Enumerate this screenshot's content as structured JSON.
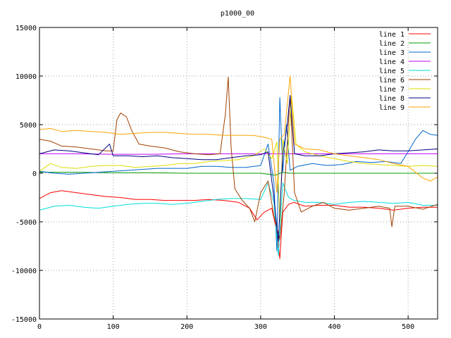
{
  "chart_data": {
    "type": "line",
    "title": "p1000_00",
    "xlabel": "",
    "ylabel": "",
    "xlim": [
      0,
      540
    ],
    "ylim": [
      -15000,
      15000
    ],
    "x_ticks": [
      0,
      100,
      200,
      300,
      400,
      500
    ],
    "y_ticks": [
      -15000,
      -10000,
      -5000,
      0,
      5000,
      10000,
      15000
    ],
    "grid": true,
    "legend_position": "top-right",
    "series": [
      {
        "name": "line 1",
        "color": "#ff0000",
        "points": [
          [
            0,
            -2600
          ],
          [
            15,
            -2000
          ],
          [
            30,
            -1800
          ],
          [
            50,
            -2000
          ],
          [
            70,
            -2200
          ],
          [
            90,
            -2400
          ],
          [
            110,
            -2500
          ],
          [
            130,
            -2700
          ],
          [
            150,
            -2700
          ],
          [
            170,
            -2800
          ],
          [
            190,
            -2800
          ],
          [
            210,
            -2800
          ],
          [
            230,
            -2700
          ],
          [
            250,
            -2800
          ],
          [
            270,
            -3000
          ],
          [
            285,
            -3600
          ],
          [
            295,
            -4800
          ],
          [
            305,
            -4000
          ],
          [
            315,
            -3600
          ],
          [
            322,
            -6000
          ],
          [
            326,
            -8800
          ],
          [
            330,
            -4000
          ],
          [
            338,
            -3200
          ],
          [
            345,
            -3000
          ],
          [
            360,
            -3400
          ],
          [
            380,
            -3300
          ],
          [
            400,
            -3300
          ],
          [
            420,
            -3500
          ],
          [
            440,
            -3500
          ],
          [
            460,
            -3600
          ],
          [
            480,
            -3800
          ],
          [
            500,
            -3600
          ],
          [
            520,
            -3500
          ],
          [
            540,
            -3500
          ]
        ]
      },
      {
        "name": "line 2",
        "color": "#00a000",
        "points": [
          [
            0,
            100
          ],
          [
            50,
            100
          ],
          [
            100,
            50
          ],
          [
            150,
            50
          ],
          [
            200,
            0
          ],
          [
            250,
            0
          ],
          [
            300,
            0
          ],
          [
            320,
            -200
          ],
          [
            330,
            100
          ],
          [
            340,
            0
          ],
          [
            360,
            0
          ],
          [
            400,
            0
          ],
          [
            450,
            0
          ],
          [
            500,
            0
          ],
          [
            540,
            0
          ]
        ]
      },
      {
        "name": "line 3",
        "color": "#0066cc",
        "points": [
          [
            0,
            200
          ],
          [
            20,
            0
          ],
          [
            40,
            -100
          ],
          [
            60,
            0
          ],
          [
            80,
            100
          ],
          [
            100,
            200
          ],
          [
            120,
            300
          ],
          [
            140,
            400
          ],
          [
            160,
            500
          ],
          [
            180,
            500
          ],
          [
            200,
            500
          ],
          [
            220,
            700
          ],
          [
            240,
            700
          ],
          [
            260,
            600
          ],
          [
            280,
            600
          ],
          [
            300,
            800
          ],
          [
            310,
            3000
          ],
          [
            318,
            -1000
          ],
          [
            322,
            -8000
          ],
          [
            326,
            7800
          ],
          [
            330,
            200
          ],
          [
            335,
            5000
          ],
          [
            340,
            300
          ],
          [
            350,
            700
          ],
          [
            370,
            1000
          ],
          [
            390,
            800
          ],
          [
            410,
            900
          ],
          [
            430,
            1200
          ],
          [
            450,
            1100
          ],
          [
            470,
            1200
          ],
          [
            490,
            1000
          ],
          [
            500,
            2200
          ],
          [
            510,
            3500
          ],
          [
            520,
            4400
          ],
          [
            530,
            4000
          ],
          [
            540,
            3900
          ]
        ]
      },
      {
        "name": "line 4",
        "color": "#c000ff",
        "points": [
          [
            0,
            2000
          ],
          [
            50,
            2000
          ],
          [
            100,
            1950
          ],
          [
            150,
            1950
          ],
          [
            200,
            2000
          ],
          [
            250,
            2000
          ],
          [
            300,
            2000
          ],
          [
            330,
            2000
          ],
          [
            350,
            2000
          ],
          [
            400,
            2000
          ],
          [
            450,
            2000
          ],
          [
            500,
            2000
          ],
          [
            540,
            2000
          ]
        ]
      },
      {
        "name": "line 5",
        "color": "#00dddd",
        "points": [
          [
            0,
            -3800
          ],
          [
            20,
            -3400
          ],
          [
            40,
            -3300
          ],
          [
            60,
            -3500
          ],
          [
            80,
            -3600
          ],
          [
            100,
            -3400
          ],
          [
            120,
            -3200
          ],
          [
            140,
            -3100
          ],
          [
            160,
            -3100
          ],
          [
            180,
            -3200
          ],
          [
            200,
            -3100
          ],
          [
            220,
            -2900
          ],
          [
            240,
            -2700
          ],
          [
            260,
            -2600
          ],
          [
            280,
            -2600
          ],
          [
            300,
            -2700
          ],
          [
            310,
            -1000
          ],
          [
            318,
            -3000
          ],
          [
            324,
            -8500
          ],
          [
            330,
            -1000
          ],
          [
            338,
            -2500
          ],
          [
            345,
            -2800
          ],
          [
            360,
            -3000
          ],
          [
            380,
            -3000
          ],
          [
            400,
            -3200
          ],
          [
            420,
            -3000
          ],
          [
            440,
            -2900
          ],
          [
            460,
            -3000
          ],
          [
            480,
            -3100
          ],
          [
            500,
            -3000
          ],
          [
            520,
            -3300
          ],
          [
            540,
            -3300
          ]
        ]
      },
      {
        "name": "line 6",
        "color": "#a04000",
        "points": [
          [
            0,
            3500
          ],
          [
            15,
            3300
          ],
          [
            30,
            2800
          ],
          [
            50,
            2700
          ],
          [
            70,
            2500
          ],
          [
            90,
            2300
          ],
          [
            100,
            2300
          ],
          [
            105,
            5500
          ],
          [
            110,
            6200
          ],
          [
            118,
            5800
          ],
          [
            125,
            4400
          ],
          [
            135,
            3000
          ],
          [
            150,
            2800
          ],
          [
            170,
            2600
          ],
          [
            190,
            2200
          ],
          [
            210,
            2000
          ],
          [
            230,
            1900
          ],
          [
            245,
            2000
          ],
          [
            252,
            6000
          ],
          [
            256,
            9900
          ],
          [
            260,
            2600
          ],
          [
            265,
            -1600
          ],
          [
            275,
            -2800
          ],
          [
            285,
            -3600
          ],
          [
            292,
            -5000
          ],
          [
            300,
            -2000
          ],
          [
            310,
            -800
          ],
          [
            318,
            -4400
          ],
          [
            326,
            -6800
          ],
          [
            332,
            -2000
          ],
          [
            340,
            8000
          ],
          [
            346,
            -2000
          ],
          [
            355,
            -4000
          ],
          [
            370,
            -3400
          ],
          [
            385,
            -3000
          ],
          [
            400,
            -3600
          ],
          [
            420,
            -3800
          ],
          [
            440,
            -3600
          ],
          [
            460,
            -3400
          ],
          [
            475,
            -3600
          ],
          [
            478,
            -5500
          ],
          [
            482,
            -3400
          ],
          [
            500,
            -3400
          ],
          [
            520,
            -3700
          ],
          [
            540,
            -3200
          ]
        ]
      },
      {
        "name": "line 7",
        "color": "#dddd00",
        "points": [
          [
            0,
            200
          ],
          [
            15,
            1000
          ],
          [
            30,
            600
          ],
          [
            50,
            500
          ],
          [
            70,
            700
          ],
          [
            90,
            800
          ],
          [
            110,
            800
          ],
          [
            130,
            600
          ],
          [
            150,
            700
          ],
          [
            170,
            800
          ],
          [
            190,
            1000
          ],
          [
            210,
            1000
          ],
          [
            230,
            1200
          ],
          [
            250,
            1300
          ],
          [
            270,
            1400
          ],
          [
            290,
            1800
          ],
          [
            305,
            2500
          ],
          [
            315,
            1500
          ],
          [
            322,
            3200
          ],
          [
            326,
            -5000
          ],
          [
            330,
            3500
          ],
          [
            336,
            1000
          ],
          [
            342,
            8000
          ],
          [
            348,
            3000
          ],
          [
            360,
            2200
          ],
          [
            380,
            1800
          ],
          [
            400,
            1500
          ],
          [
            420,
            1200
          ],
          [
            440,
            1000
          ],
          [
            460,
            900
          ],
          [
            480,
            800
          ],
          [
            500,
            700
          ],
          [
            520,
            800
          ],
          [
            540,
            700
          ]
        ]
      },
      {
        "name": "line 8",
        "color": "#000080",
        "points": [
          [
            0,
            2000
          ],
          [
            20,
            2400
          ],
          [
            40,
            2300
          ],
          [
            60,
            2100
          ],
          [
            80,
            1900
          ],
          [
            95,
            3000
          ],
          [
            100,
            1800
          ],
          [
            120,
            1800
          ],
          [
            140,
            1700
          ],
          [
            160,
            1800
          ],
          [
            180,
            1600
          ],
          [
            200,
            1500
          ],
          [
            220,
            1400
          ],
          [
            240,
            1400
          ],
          [
            260,
            1600
          ],
          [
            280,
            1800
          ],
          [
            300,
            1900
          ],
          [
            310,
            2200
          ],
          [
            318,
            -2500
          ],
          [
            324,
            -7000
          ],
          [
            330,
            2000
          ],
          [
            336,
            5000
          ],
          [
            340,
            8000
          ],
          [
            346,
            2000
          ],
          [
            360,
            1800
          ],
          [
            380,
            1800
          ],
          [
            400,
            2000
          ],
          [
            420,
            2100
          ],
          [
            440,
            2200
          ],
          [
            460,
            2400
          ],
          [
            480,
            2300
          ],
          [
            500,
            2300
          ],
          [
            520,
            2400
          ],
          [
            540,
            2500
          ]
        ]
      },
      {
        "name": "line 9",
        "color": "#ffa500",
        "points": [
          [
            0,
            4500
          ],
          [
            15,
            4600
          ],
          [
            30,
            4300
          ],
          [
            50,
            4400
          ],
          [
            70,
            4300
          ],
          [
            90,
            4200
          ],
          [
            110,
            4000
          ],
          [
            130,
            4100
          ],
          [
            150,
            4200
          ],
          [
            170,
            4200
          ],
          [
            190,
            4100
          ],
          [
            210,
            4000
          ],
          [
            230,
            4000
          ],
          [
            250,
            3900
          ],
          [
            270,
            3900
          ],
          [
            290,
            3900
          ],
          [
            305,
            3700
          ],
          [
            315,
            3500
          ],
          [
            322,
            -2000
          ],
          [
            326,
            3500
          ],
          [
            332,
            4000
          ],
          [
            340,
            10000
          ],
          [
            346,
            3000
          ],
          [
            360,
            2500
          ],
          [
            380,
            2400
          ],
          [
            400,
            2000
          ],
          [
            420,
            1800
          ],
          [
            440,
            1600
          ],
          [
            460,
            1400
          ],
          [
            480,
            1000
          ],
          [
            500,
            700
          ],
          [
            520,
            -500
          ],
          [
            530,
            -800
          ],
          [
            540,
            -400
          ]
        ]
      }
    ]
  }
}
